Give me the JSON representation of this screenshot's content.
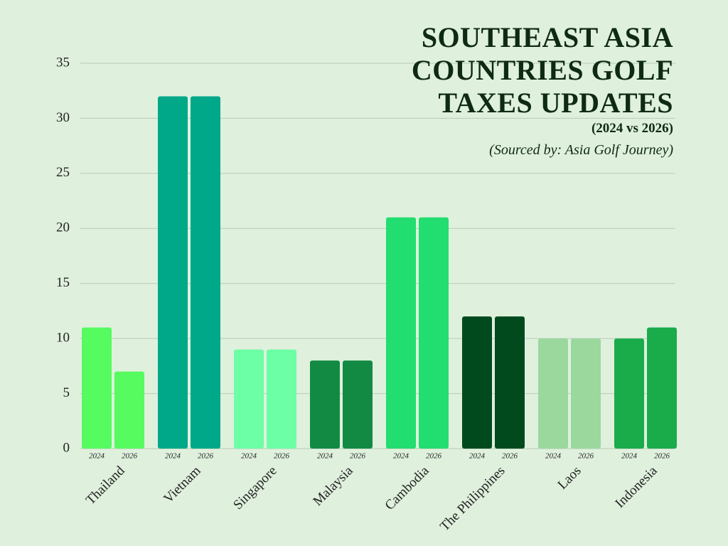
{
  "chart_data": {
    "type": "bar",
    "title": "SOUTHEAST ASIA COUNTRIES GOLF TAXES UPDATES",
    "subtitle": "(2024 vs 2026)",
    "source": "(Sourced by: Asia Golf Journey)",
    "categories": [
      "Thailand",
      "Vietnam",
      "Singapore",
      "Malaysia",
      "Cambodia",
      "The Philippines",
      "Laos",
      "Indonesia"
    ],
    "colors": [
      "#55fb5f",
      "#00a88a",
      "#6cffa5",
      "#128a44",
      "#22dd70",
      "#004a1d",
      "#9ad89e",
      "#1aab4b"
    ],
    "series": [
      {
        "name": "2024",
        "values": [
          11,
          32,
          9,
          8,
          21,
          12,
          10,
          10
        ]
      },
      {
        "name": "2026",
        "values": [
          7,
          32,
          9,
          8,
          21,
          12,
          10,
          11
        ]
      }
    ],
    "ylim": [
      0,
      35
    ],
    "yticks": [
      0,
      5,
      10,
      15,
      20,
      25,
      30,
      35
    ],
    "grid": true
  }
}
